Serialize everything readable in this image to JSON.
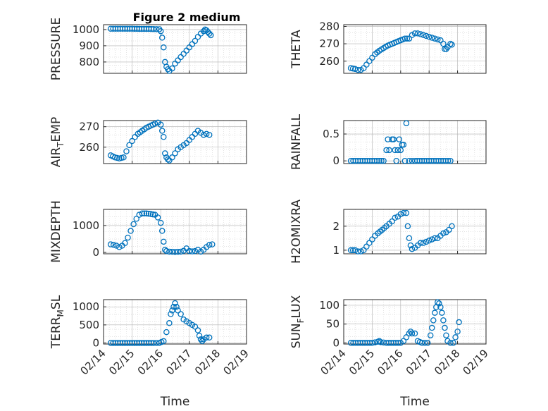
{
  "title": "Figure 2 medium",
  "colors": {
    "marker": "#0072bd",
    "axis": "#262626",
    "grid": "#b0b0b0"
  },
  "chart_data": [
    {
      "type": "scatter",
      "id": "pressure",
      "ylabel": "PRESSURE",
      "ylabel_sub": "",
      "ylim": [
        730,
        1030
      ],
      "yticks": [
        800,
        900,
        1000
      ],
      "xlim": [
        0,
        5
      ],
      "xticklabels": [
        "02/14",
        "02/15",
        "02/16",
        "02/17",
        "02/18",
        "02/19"
      ],
      "xlabel": "",
      "grid": true,
      "minor_grid": true,
      "points": [
        [
          0.25,
          1005
        ],
        [
          0.5,
          1005
        ],
        [
          0.75,
          1005
        ],
        [
          1.0,
          1005
        ],
        [
          1.25,
          1004
        ],
        [
          1.5,
          1004
        ],
        [
          1.75,
          1003
        ],
        [
          1.95,
          1002
        ],
        [
          2.0,
          990
        ],
        [
          2.05,
          950
        ],
        [
          2.1,
          890
        ],
        [
          2.15,
          800
        ],
        [
          2.2,
          770
        ],
        [
          2.25,
          755
        ],
        [
          2.3,
          745
        ],
        [
          2.4,
          760
        ],
        [
          2.5,
          790
        ],
        [
          2.6,
          810
        ],
        [
          2.7,
          830
        ],
        [
          2.8,
          850
        ],
        [
          2.9,
          870
        ],
        [
          3.0,
          890
        ],
        [
          3.1,
          910
        ],
        [
          3.2,
          930
        ],
        [
          3.3,
          955
        ],
        [
          3.4,
          975
        ],
        [
          3.5,
          990
        ],
        [
          3.55,
          1000
        ],
        [
          3.6,
          995
        ],
        [
          3.65,
          985
        ],
        [
          3.7,
          975
        ],
        [
          3.75,
          965
        ]
      ]
    },
    {
      "type": "scatter",
      "id": "theta",
      "ylabel": "THETA",
      "ylabel_sub": "",
      "ylim": [
        253,
        281
      ],
      "yticks": [
        260,
        270,
        280
      ],
      "xlim": [
        0,
        5
      ],
      "xticklabels": [
        "02/14",
        "02/15",
        "02/16",
        "02/17",
        "02/18",
        "02/19"
      ],
      "xlabel": "",
      "grid": true,
      "minor_grid": true,
      "points": [
        [
          0.25,
          256
        ],
        [
          0.4,
          255.5
        ],
        [
          0.5,
          255
        ],
        [
          0.6,
          255
        ],
        [
          0.7,
          256
        ],
        [
          0.8,
          258
        ],
        [
          0.9,
          260
        ],
        [
          1.0,
          262
        ],
        [
          1.1,
          264
        ],
        [
          1.25,
          266
        ],
        [
          1.4,
          267.5
        ],
        [
          1.55,
          269
        ],
        [
          1.7,
          270
        ],
        [
          1.85,
          271
        ],
        [
          2.0,
          272
        ],
        [
          2.15,
          273
        ],
        [
          2.3,
          273
        ],
        [
          2.4,
          275
        ],
        [
          2.5,
          276
        ],
        [
          2.6,
          276
        ],
        [
          2.7,
          275.5
        ],
        [
          2.8,
          275
        ],
        [
          2.9,
          274.5
        ],
        [
          3.0,
          274
        ],
        [
          3.1,
          273.5
        ],
        [
          3.2,
          273
        ],
        [
          3.3,
          272.5
        ],
        [
          3.4,
          272
        ],
        [
          3.5,
          270
        ],
        [
          3.55,
          267
        ],
        [
          3.6,
          267
        ],
        [
          3.65,
          268
        ],
        [
          3.75,
          270
        ],
        [
          3.8,
          269.5
        ]
      ]
    },
    {
      "type": "scatter",
      "id": "air_temp",
      "ylabel": "AIR",
      "ylabel_sub": "T",
      "ylabel_after": "EMP",
      "ylim": [
        252,
        273
      ],
      "yticks": [
        260,
        270
      ],
      "xlim": [
        0,
        5
      ],
      "xticklabels": [
        "02/14",
        "02/15",
        "02/16",
        "02/17",
        "02/18",
        "02/19"
      ],
      "xlabel": "",
      "grid": true,
      "minor_grid": true,
      "points": [
        [
          0.25,
          256
        ],
        [
          0.4,
          255
        ],
        [
          0.55,
          254.5
        ],
        [
          0.7,
          255
        ],
        [
          0.8,
          258
        ],
        [
          0.9,
          261
        ],
        [
          1.0,
          263
        ],
        [
          1.1,
          265
        ],
        [
          1.2,
          266.5
        ],
        [
          1.35,
          268
        ],
        [
          1.5,
          269.5
        ],
        [
          1.65,
          270.5
        ],
        [
          1.8,
          271.5
        ],
        [
          1.9,
          272
        ],
        [
          2.0,
          271
        ],
        [
          2.05,
          268
        ],
        [
          2.1,
          265
        ],
        [
          2.15,
          257
        ],
        [
          2.2,
          255
        ],
        [
          2.25,
          254
        ],
        [
          2.3,
          253.5
        ],
        [
          2.4,
          255
        ],
        [
          2.5,
          257
        ],
        [
          2.6,
          259
        ],
        [
          2.7,
          260
        ],
        [
          2.8,
          261
        ],
        [
          2.9,
          262
        ],
        [
          3.0,
          263.5
        ],
        [
          3.1,
          265
        ],
        [
          3.2,
          266.5
        ],
        [
          3.3,
          268
        ],
        [
          3.4,
          267
        ],
        [
          3.5,
          266
        ],
        [
          3.6,
          266.5
        ],
        [
          3.7,
          266
        ]
      ]
    },
    {
      "type": "scatter",
      "id": "rainfall",
      "ylabel": "RAINFALL",
      "ylabel_sub": "",
      "ylim": [
        -0.05,
        0.75
      ],
      "yticks": [
        0,
        0.5
      ],
      "xlim": [
        0,
        5
      ],
      "xticklabels": [
        "02/14",
        "02/15",
        "02/16",
        "02/17",
        "02/18",
        "02/19"
      ],
      "xlabel": "",
      "grid": true,
      "minor_grid": true,
      "points": [
        [
          0.25,
          0
        ],
        [
          0.5,
          0
        ],
        [
          0.75,
          0
        ],
        [
          1.0,
          0
        ],
        [
          1.25,
          0
        ],
        [
          1.4,
          0
        ],
        [
          1.5,
          0.2
        ],
        [
          1.55,
          0.4
        ],
        [
          1.6,
          0.2
        ],
        [
          1.7,
          0.4
        ],
        [
          1.75,
          0.4
        ],
        [
          1.8,
          0.2
        ],
        [
          1.85,
          0
        ],
        [
          1.9,
          0.2
        ],
        [
          1.95,
          0.4
        ],
        [
          2.0,
          0.2
        ],
        [
          2.05,
          0.3
        ],
        [
          2.1,
          0.3
        ],
        [
          2.15,
          0
        ],
        [
          2.2,
          0.7
        ],
        [
          2.3,
          0
        ],
        [
          2.5,
          0
        ],
        [
          2.75,
          0
        ],
        [
          3.0,
          0
        ],
        [
          3.25,
          0
        ],
        [
          3.5,
          0
        ],
        [
          3.75,
          0
        ]
      ]
    },
    {
      "type": "scatter",
      "id": "mixdepth",
      "ylabel": "MIXDEPTH",
      "ylabel_sub": "",
      "ylim": [
        -50,
        1600
      ],
      "yticks": [
        0,
        1000
      ],
      "xlim": [
        0,
        5
      ],
      "xticklabels": [
        "02/14",
        "02/15",
        "02/16",
        "02/17",
        "02/18",
        "02/19"
      ],
      "xlabel": "",
      "grid": true,
      "minor_grid": true,
      "points": [
        [
          0.25,
          300
        ],
        [
          0.35,
          280
        ],
        [
          0.45,
          250
        ],
        [
          0.55,
          200
        ],
        [
          0.65,
          250
        ],
        [
          0.75,
          350
        ],
        [
          0.85,
          550
        ],
        [
          0.95,
          800
        ],
        [
          1.05,
          1050
        ],
        [
          1.15,
          1250
        ],
        [
          1.25,
          1400
        ],
        [
          1.35,
          1450
        ],
        [
          1.5,
          1450
        ],
        [
          1.65,
          1430
        ],
        [
          1.8,
          1400
        ],
        [
          1.9,
          1300
        ],
        [
          2.0,
          1100
        ],
        [
          2.05,
          800
        ],
        [
          2.1,
          400
        ],
        [
          2.15,
          100
        ],
        [
          2.2,
          50
        ],
        [
          2.3,
          30
        ],
        [
          2.5,
          20
        ],
        [
          2.7,
          30
        ],
        [
          2.8,
          60
        ],
        [
          2.9,
          150
        ],
        [
          3.0,
          50
        ],
        [
          3.1,
          40
        ],
        [
          3.2,
          50
        ],
        [
          3.3,
          100
        ],
        [
          3.4,
          30
        ],
        [
          3.5,
          100
        ],
        [
          3.6,
          200
        ],
        [
          3.7,
          280
        ],
        [
          3.8,
          300
        ]
      ]
    },
    {
      "type": "scatter",
      "id": "h2omixra",
      "ylabel": "H2OMIXRA",
      "ylabel_sub": "",
      "ylim": [
        0.85,
        2.7
      ],
      "yticks": [
        1,
        2
      ],
      "xlim": [
        0,
        5
      ],
      "xticklabels": [
        "02/14",
        "02/15",
        "02/16",
        "02/17",
        "02/18",
        "02/19"
      ],
      "xlabel": "",
      "grid": true,
      "minor_grid": true,
      "points": [
        [
          0.25,
          1.0
        ],
        [
          0.4,
          1.0
        ],
        [
          0.5,
          0.95
        ],
        [
          0.6,
          0.95
        ],
        [
          0.7,
          1.0
        ],
        [
          0.8,
          1.15
        ],
        [
          0.9,
          1.3
        ],
        [
          1.0,
          1.45
        ],
        [
          1.1,
          1.6
        ],
        [
          1.2,
          1.7
        ],
        [
          1.35,
          1.85
        ],
        [
          1.5,
          2.0
        ],
        [
          1.6,
          2.1
        ],
        [
          1.7,
          2.2
        ],
        [
          1.8,
          2.35
        ],
        [
          1.9,
          2.4
        ],
        [
          2.0,
          2.5
        ],
        [
          2.1,
          2.55
        ],
        [
          2.2,
          2.55
        ],
        [
          2.25,
          2.0
        ],
        [
          2.3,
          1.5
        ],
        [
          2.35,
          1.2
        ],
        [
          2.4,
          1.05
        ],
        [
          2.5,
          1.1
        ],
        [
          2.6,
          1.2
        ],
        [
          2.7,
          1.3
        ],
        [
          2.8,
          1.3
        ],
        [
          2.9,
          1.35
        ],
        [
          3.0,
          1.4
        ],
        [
          3.1,
          1.45
        ],
        [
          3.2,
          1.5
        ],
        [
          3.3,
          1.5
        ],
        [
          3.4,
          1.6
        ],
        [
          3.5,
          1.7
        ],
        [
          3.6,
          1.75
        ],
        [
          3.7,
          1.85
        ],
        [
          3.8,
          2.0
        ]
      ]
    },
    {
      "type": "scatter",
      "id": "terr_msl",
      "ylabel": "TERR",
      "ylabel_sub": "M",
      "ylabel_after": "SL",
      "ylim": [
        -30,
        1200
      ],
      "yticks": [
        0,
        500,
        1000
      ],
      "xlim": [
        0,
        5
      ],
      "xticklabels": [
        "02/14",
        "02/15",
        "02/16",
        "02/17",
        "02/18",
        "02/19"
      ],
      "xlabel": "Time",
      "grid": true,
      "minor_grid": true,
      "points": [
        [
          0.25,
          0
        ],
        [
          0.5,
          0
        ],
        [
          0.75,
          0
        ],
        [
          1.0,
          0
        ],
        [
          1.25,
          0
        ],
        [
          1.5,
          0
        ],
        [
          1.75,
          0
        ],
        [
          1.95,
          0
        ],
        [
          2.1,
          50
        ],
        [
          2.2,
          300
        ],
        [
          2.3,
          550
        ],
        [
          2.35,
          800
        ],
        [
          2.4,
          900
        ],
        [
          2.45,
          1000
        ],
        [
          2.5,
          1100
        ],
        [
          2.55,
          1000
        ],
        [
          2.6,
          900
        ],
        [
          2.7,
          800
        ],
        [
          2.8,
          650
        ],
        [
          2.9,
          600
        ],
        [
          3.0,
          550
        ],
        [
          3.1,
          500
        ],
        [
          3.2,
          450
        ],
        [
          3.3,
          350
        ],
        [
          3.35,
          200
        ],
        [
          3.4,
          100
        ],
        [
          3.45,
          50
        ],
        [
          3.5,
          100
        ],
        [
          3.6,
          150
        ],
        [
          3.7,
          150
        ]
      ]
    },
    {
      "type": "scatter",
      "id": "sun_flux",
      "ylabel": "SUN",
      "ylabel_sub": "F",
      "ylabel_after": "LUX",
      "ylim": [
        -3,
        115
      ],
      "yticks": [
        0,
        50,
        100
      ],
      "xlim": [
        0,
        5
      ],
      "xticklabels": [
        "02/14",
        "02/15",
        "02/16",
        "02/17",
        "02/18",
        "02/19"
      ],
      "xlabel": "Time",
      "grid": true,
      "minor_grid": true,
      "points": [
        [
          0.25,
          0
        ],
        [
          0.5,
          0
        ],
        [
          0.75,
          0
        ],
        [
          1.0,
          0
        ],
        [
          1.2,
          3
        ],
        [
          1.25,
          5
        ],
        [
          1.3,
          2
        ],
        [
          1.5,
          0
        ],
        [
          1.75,
          0
        ],
        [
          2.0,
          0
        ],
        [
          2.1,
          5
        ],
        [
          2.2,
          15
        ],
        [
          2.3,
          25
        ],
        [
          2.35,
          30
        ],
        [
          2.4,
          25
        ],
        [
          2.5,
          25
        ],
        [
          2.6,
          5
        ],
        [
          2.75,
          0
        ],
        [
          2.95,
          0
        ],
        [
          3.05,
          20
        ],
        [
          3.1,
          40
        ],
        [
          3.15,
          60
        ],
        [
          3.2,
          80
        ],
        [
          3.25,
          95
        ],
        [
          3.3,
          108
        ],
        [
          3.35,
          105
        ],
        [
          3.4,
          95
        ],
        [
          3.45,
          80
        ],
        [
          3.5,
          60
        ],
        [
          3.55,
          40
        ],
        [
          3.6,
          20
        ],
        [
          3.65,
          5
        ],
        [
          3.75,
          0
        ],
        [
          3.85,
          0
        ],
        [
          4.0,
          30
        ],
        [
          4.05,
          55
        ]
      ]
    }
  ]
}
